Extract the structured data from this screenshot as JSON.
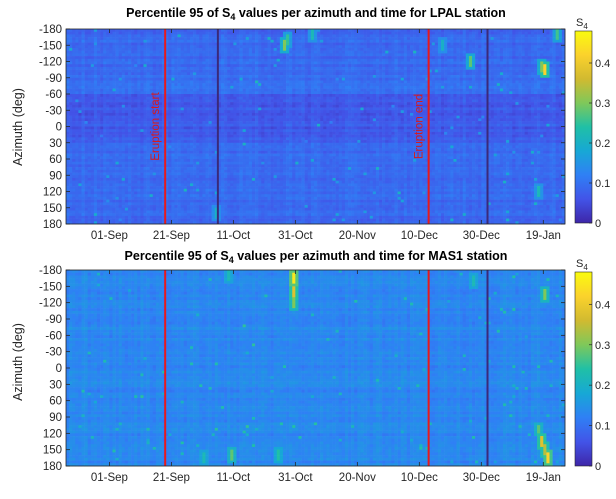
{
  "colors": {
    "event_line": "#e8191c",
    "dark_line": "#3b2a7a",
    "colormap": [
      "#3e26a8",
      "#4254e8",
      "#2f80f5",
      "#17a8d5",
      "#20c0a6",
      "#7fc85a",
      "#d1ba30",
      "#fbd22c",
      "#f9fb0e"
    ]
  },
  "chart_data": [
    {
      "type": "heatmap",
      "title": "Percentile 95 of S₄ values per azimuth and time for LPAL station",
      "title_parts": [
        "Percentile 95 of S",
        "4",
        " values per azimuth and time for LPAL station"
      ],
      "ylabel": "Azimuth (deg)",
      "xlabel": "",
      "x_tick_labels": [
        "01-Sep",
        "21-Sep",
        "11-Oct",
        "31-Oct",
        "20-Nov",
        "10-Dec",
        "30-Dec",
        "19-Jan"
      ],
      "x_tick_dates": [
        "2021-09-01",
        "2021-09-21",
        "2021-10-11",
        "2021-10-31",
        "2021-11-20",
        "2021-12-10",
        "2021-12-30",
        "2022-01-19"
      ],
      "xlim": [
        "2021-08-18",
        "2022-01-26"
      ],
      "y_tick_labels": [
        "-180",
        "-150",
        "-120",
        "-90",
        "-60",
        "-30",
        "0",
        "30",
        "60",
        "90",
        "120",
        "150",
        "180"
      ],
      "ylim": [
        -180,
        180
      ],
      "y_reversed": true,
      "clim": [
        0,
        0.48
      ],
      "colorbar_label": "S4",
      "colorbar_label_parts": [
        "S",
        "4"
      ],
      "colorbar_ticks": [
        "0",
        "0.1",
        "0.2",
        "0.3",
        "0.4"
      ],
      "colorbar_tick_values": [
        0,
        0.1,
        0.2,
        0.3,
        0.4
      ],
      "base_value": 0.09,
      "events": [
        {
          "date": "2021-09-19",
          "label": "Eruption start",
          "color": "event"
        },
        {
          "date": "2021-12-13",
          "label": "Eruption end",
          "color": "event"
        }
      ],
      "dark_lines": [
        "2021-10-06",
        "2022-01-01"
      ],
      "hotspots": [
        {
          "date": "2021-10-27",
          "az": -150,
          "value": 0.3
        },
        {
          "date": "2021-10-28",
          "az": -160,
          "value": 0.25
        },
        {
          "date": "2021-12-26",
          "az": -120,
          "value": 0.28
        },
        {
          "date": "2022-01-19",
          "az": -105,
          "value": 0.42
        },
        {
          "date": "2022-01-18",
          "az": -110,
          "value": 0.3
        },
        {
          "date": "2022-01-23",
          "az": -170,
          "value": 0.26
        },
        {
          "date": "2021-11-05",
          "az": -170,
          "value": 0.22
        },
        {
          "date": "2022-01-17",
          "az": 120,
          "value": 0.22
        },
        {
          "date": "2021-12-17",
          "az": -150,
          "value": 0.2
        },
        {
          "date": "2021-10-05",
          "az": 160,
          "value": 0.2
        }
      ]
    },
    {
      "type": "heatmap",
      "title": "Percentile 95 of S₄ values per azimuth and time for MAS1 station",
      "title_parts": [
        "Percentile 95 of S",
        "4",
        " values per azimuth and time for MAS1 station"
      ],
      "ylabel": "Azimuth (deg)",
      "xlabel": "",
      "x_tick_labels": [
        "01-Sep",
        "21-Sep",
        "11-Oct",
        "31-Oct",
        "20-Nov",
        "10-Dec",
        "30-Dec",
        "19-Jan"
      ],
      "x_tick_dates": [
        "2021-09-01",
        "2021-09-21",
        "2021-10-11",
        "2021-10-31",
        "2021-11-20",
        "2021-12-10",
        "2021-12-30",
        "2022-01-19"
      ],
      "xlim": [
        "2021-08-18",
        "2022-01-26"
      ],
      "y_tick_labels": [
        "-180",
        "-150",
        "-120",
        "-90",
        "-60",
        "-30",
        "0",
        "30",
        "60",
        "90",
        "120",
        "150",
        "180"
      ],
      "ylim": [
        -180,
        180
      ],
      "y_reversed": true,
      "clim": [
        0,
        0.48
      ],
      "colorbar_label": "S4",
      "colorbar_label_parts": [
        "S",
        "4"
      ],
      "colorbar_ticks": [
        "0",
        "0.1",
        "0.2",
        "0.3",
        "0.4"
      ],
      "colorbar_tick_values": [
        0,
        0.1,
        0.2,
        0.3,
        0.4
      ],
      "base_value": 0.13,
      "events": [
        {
          "date": "2021-09-19",
          "label": "",
          "color": "event"
        },
        {
          "date": "2021-12-13",
          "label": "",
          "color": "event"
        }
      ],
      "dark_lines": [
        "2022-01-01"
      ],
      "hotspots": [
        {
          "date": "2021-10-30",
          "az": -165,
          "value": 0.45
        },
        {
          "date": "2021-10-30",
          "az": -140,
          "value": 0.38
        },
        {
          "date": "2021-10-30",
          "az": -120,
          "value": 0.3
        },
        {
          "date": "2022-01-18",
          "az": 135,
          "value": 0.38
        },
        {
          "date": "2022-01-20",
          "az": 165,
          "value": 0.42
        },
        {
          "date": "2022-01-19",
          "az": 150,
          "value": 0.34
        },
        {
          "date": "2022-01-17",
          "az": 112,
          "value": 0.28
        },
        {
          "date": "2022-01-19",
          "az": -135,
          "value": 0.3
        },
        {
          "date": "2021-10-10",
          "az": 160,
          "value": 0.28
        },
        {
          "date": "2021-10-25",
          "az": 160,
          "value": 0.24
        },
        {
          "date": "2021-10-01",
          "az": 165,
          "value": 0.22
        },
        {
          "date": "2021-10-09",
          "az": -170,
          "value": 0.22
        },
        {
          "date": "2021-12-27",
          "az": -160,
          "value": 0.22
        }
      ]
    }
  ]
}
